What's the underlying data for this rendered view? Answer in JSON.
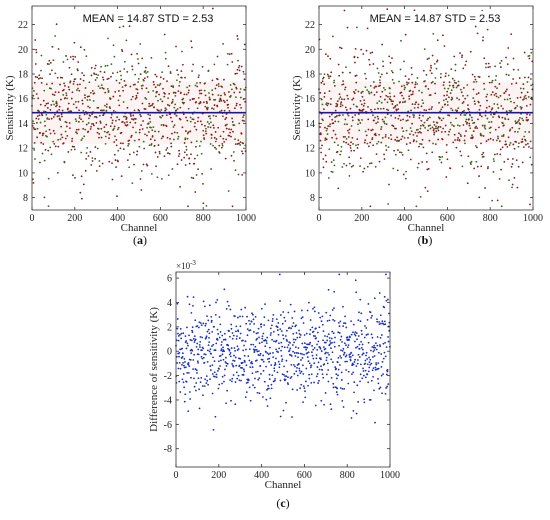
{
  "chart_data": [
    {
      "id": "a",
      "type": "scatter",
      "caption_letter": "a",
      "stat_text": "MEAN = 14.87  STD = 2.53",
      "xlabel": "Channel",
      "ylabel": "Sensitivity (K)",
      "xlim": [
        0,
        1000
      ],
      "ylim": [
        7,
        23.5
      ],
      "xticks": [
        0,
        200,
        400,
        600,
        800,
        1000
      ],
      "yticks": [
        8,
        10,
        12,
        14,
        16,
        18,
        20,
        22
      ],
      "mean": 14.87,
      "std": 2.53,
      "n_points": 1000,
      "grid": false,
      "colors": {
        "points": "#8b1a1a",
        "points_alt": "#2e6b1f",
        "mean_line": "#1515b0",
        "band": "#e8a0a0"
      }
    },
    {
      "id": "b",
      "type": "scatter",
      "caption_letter": "b",
      "stat_text": "MEAN = 14.87  STD = 2.53",
      "xlabel": "Channel",
      "ylabel": "Sensitivity (K)",
      "xlim": [
        0,
        1000
      ],
      "ylim": [
        7,
        23.5
      ],
      "xticks": [
        0,
        200,
        400,
        600,
        800,
        1000
      ],
      "yticks": [
        8,
        10,
        12,
        14,
        16,
        18,
        20,
        22
      ],
      "mean": 14.87,
      "std": 2.53,
      "n_points": 1000,
      "grid": false,
      "colors": {
        "points": "#8b1a1a",
        "points_alt": "#2e6b1f",
        "mean_line": "#1515b0",
        "band": "#e8a0a0"
      }
    },
    {
      "id": "c",
      "type": "scatter",
      "caption_letter": "c",
      "xlabel": "Channel",
      "ylabel": "Difference of sensitivity (K)",
      "scale_base": "×10",
      "scale_exp": "-3",
      "xlim": [
        0,
        1000
      ],
      "ylim": [
        -9.5,
        6.5
      ],
      "xticks": [
        0,
        200,
        400,
        600,
        800,
        1000
      ],
      "yticks": [
        -8,
        -6,
        -4,
        -2,
        0,
        2,
        4,
        6
      ],
      "mean": 0,
      "std": 2.0,
      "n_points": 1000,
      "grid": false,
      "colors": {
        "points": "#1a2fc0"
      }
    }
  ]
}
